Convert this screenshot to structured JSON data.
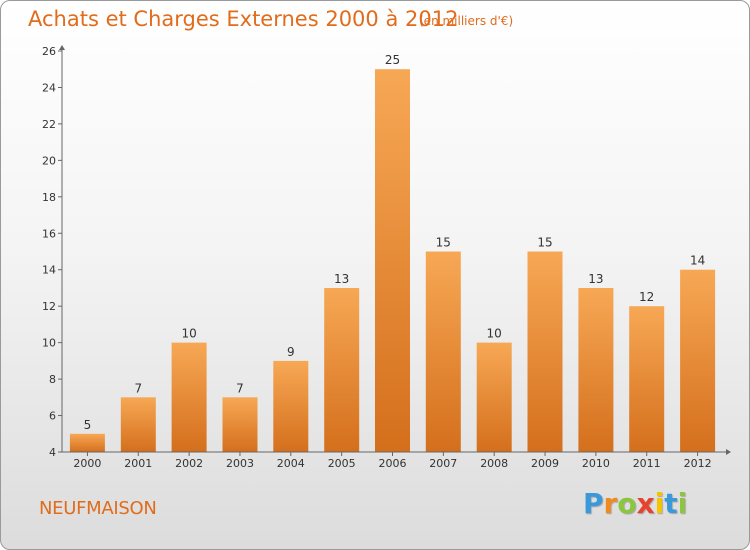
{
  "header": {
    "title": "Achats et Charges Externes 2000 à 2012",
    "unit": "(en milliers d'€)"
  },
  "footer": {
    "commune": "NEUFMAISON",
    "logo_letters": [
      "P",
      "r",
      "o",
      "x",
      "i",
      "t",
      "i"
    ],
    "logo_colors": [
      "#3a9ad9",
      "#f08a1c",
      "#8cc63f",
      "#e8412c",
      "#f5c400",
      "#3a9ad9",
      "#8cc63f"
    ]
  },
  "colors": {
    "bar_top": "#f7a855",
    "bar_bottom": "#d46f1c",
    "text": "#333333",
    "accent": "#e06c1c"
  },
  "chart_data": {
    "type": "bar",
    "title": "Achats et Charges Externes 2000 à 2012",
    "subtitle": "(en milliers d'€)",
    "categories": [
      "2000",
      "2001",
      "2002",
      "2003",
      "2004",
      "2005",
      "2006",
      "2007",
      "2008",
      "2009",
      "2010",
      "2011",
      "2012"
    ],
    "values": [
      5,
      7,
      10,
      7,
      9,
      13,
      25,
      15,
      10,
      15,
      13,
      12,
      14
    ],
    "ylim": [
      4,
      26
    ],
    "yticks": [
      4,
      6,
      8,
      10,
      12,
      14,
      16,
      18,
      20,
      22,
      24,
      26
    ],
    "grid": false,
    "data_labels": true
  }
}
